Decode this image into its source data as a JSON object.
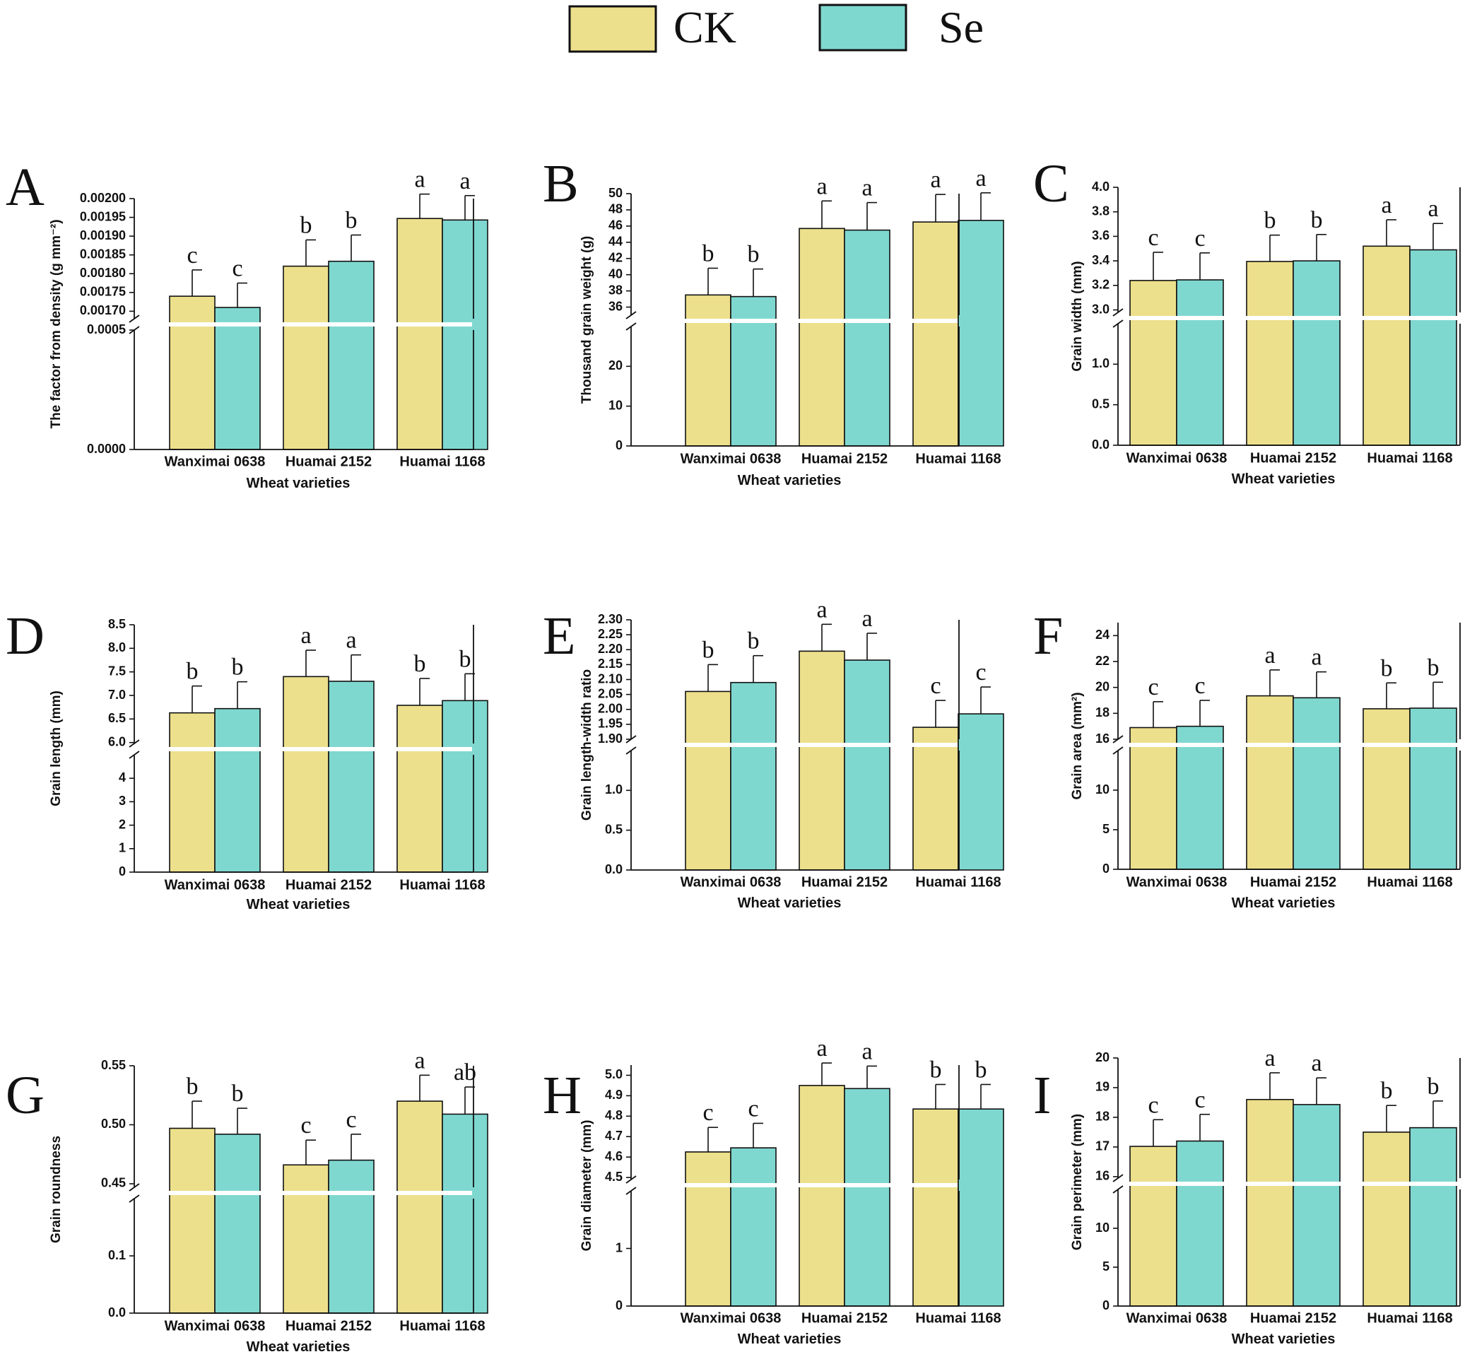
{
  "legend": {
    "items": [
      {
        "label": "CK",
        "color": "#ede08c"
      },
      {
        "label": "Se",
        "color": "#7fd8d0"
      }
    ]
  },
  "colors": {
    "ck": "#ede08c",
    "se": "#7fd8d0",
    "stroke": "#111111"
  },
  "chart_data": [
    {
      "type": "bar",
      "panel_letter": "A",
      "categories": [
        "Wanximai 0638",
        "Huamai 2152",
        "Huamai 1168"
      ],
      "series": [
        {
          "name": "CK",
          "values": [
            0.00174,
            0.00182,
            0.001947
          ],
          "errors": [
            7e-05,
            7e-05,
            6.5e-05
          ]
        },
        {
          "name": "Se",
          "values": [
            0.00171,
            0.001833,
            0.001943
          ],
          "errors": [
            6.5e-05,
            7e-05,
            6.5e-05
          ]
        }
      ],
      "letters": [
        [
          "c",
          "c"
        ],
        [
          "b",
          "b"
        ],
        [
          "a",
          "a"
        ]
      ],
      "ylabel": "The factor from density (g mm⁻²)",
      "xlabel": "Wheat varieties",
      "lower_ylim": [
        0,
        0.0005
      ],
      "upper_ylim": [
        0.00168,
        0.002
      ],
      "lower_ticks": [
        "0.0000",
        "0.0005"
      ],
      "lower_tick_values": [
        0,
        0.0005
      ],
      "upper_ticks": [
        "0.00170",
        "0.00175",
        "0.00180",
        "0.00185",
        "0.00190",
        "0.00195",
        "0.00200"
      ],
      "upper_tick_values": [
        0.0017,
        0.00175,
        0.0018,
        0.00185,
        0.0019,
        0.00195,
        0.002
      ]
    },
    {
      "type": "bar",
      "panel_letter": "B",
      "categories": [
        "Wanximai 0638",
        "Huamai 2152",
        "Huamai 1168"
      ],
      "series": [
        {
          "name": "CK",
          "values": [
            37.5,
            45.7,
            46.5
          ],
          "errors": [
            3.3,
            3.4,
            3.4
          ]
        },
        {
          "name": "Se",
          "values": [
            37.3,
            45.5,
            46.7
          ],
          "errors": [
            3.4,
            3.4,
            3.4
          ]
        }
      ],
      "letters": [
        [
          "b",
          "b"
        ],
        [
          "a",
          "a"
        ],
        [
          "a",
          "a"
        ]
      ],
      "ylabel": "Thousand grain weight (g)",
      "xlabel": "Wheat varieties",
      "lower_ylim": [
        0,
        30
      ],
      "upper_ylim": [
        35,
        50
      ],
      "lower_ticks": [
        "0",
        "10",
        "20"
      ],
      "lower_tick_values": [
        0,
        10,
        20
      ],
      "upper_ticks": [
        "36",
        "38",
        "40",
        "42",
        "44",
        "46",
        "48",
        "50"
      ],
      "upper_tick_values": [
        36,
        38,
        40,
        42,
        44,
        46,
        48,
        50
      ]
    },
    {
      "type": "bar",
      "panel_letter": "C",
      "categories": [
        "Wanximai 0638",
        "Huamai 2152",
        "Huamai 1168"
      ],
      "series": [
        {
          "name": "CK",
          "values": [
            3.24,
            3.395,
            3.52
          ],
          "errors": [
            0.23,
            0.215,
            0.215
          ]
        },
        {
          "name": "Se",
          "values": [
            3.245,
            3.4,
            3.49
          ],
          "errors": [
            0.22,
            0.215,
            0.215
          ]
        }
      ],
      "letters": [
        [
          "c",
          "c"
        ],
        [
          "b",
          "b"
        ],
        [
          "a",
          "a"
        ]
      ],
      "ylabel": "Grain width (mm)",
      "xlabel": "Wheat varieties",
      "lower_ylim": [
        0,
        1.5
      ],
      "upper_ylim": [
        2.98,
        4.0
      ],
      "lower_ticks": [
        "0.0",
        "0.5",
        "1.0"
      ],
      "lower_tick_values": [
        0,
        0.5,
        1.0
      ],
      "upper_ticks": [
        "3.0",
        "3.2",
        "3.4",
        "3.6",
        "3.8",
        "4.0"
      ],
      "upper_tick_values": [
        3.0,
        3.2,
        3.4,
        3.6,
        3.8,
        4.0
      ]
    },
    {
      "type": "bar",
      "panel_letter": "D",
      "categories": [
        "Wanximai 0638",
        "Huamai 2152",
        "Huamai 1168"
      ],
      "series": [
        {
          "name": "CK",
          "values": [
            6.63,
            7.4,
            6.79
          ],
          "errors": [
            0.57,
            0.56,
            0.57
          ]
        },
        {
          "name": "Se",
          "values": [
            6.72,
            7.3,
            6.89
          ],
          "errors": [
            0.57,
            0.56,
            0.57
          ]
        }
      ],
      "letters": [
        [
          "b",
          "b"
        ],
        [
          "a",
          "a"
        ],
        [
          "b",
          "b"
        ]
      ],
      "ylabel": "Grain length (mm)",
      "xlabel": "Wheat varieties",
      "lower_ylim": [
        0,
        5
      ],
      "upper_ylim": [
        5.98,
        8.5
      ],
      "lower_ticks": [
        "0",
        "1",
        "2",
        "3",
        "4"
      ],
      "lower_tick_values": [
        0,
        1,
        2,
        3,
        4
      ],
      "upper_ticks": [
        "6.0",
        "6.5",
        "7.0",
        "7.5",
        "8.0",
        "8.5"
      ],
      "upper_tick_values": [
        6.0,
        6.5,
        7.0,
        7.5,
        8.0,
        8.5
      ]
    },
    {
      "type": "bar",
      "panel_letter": "E",
      "categories": [
        "Wanximai 0638",
        "Huamai 2152",
        "Huamai 1168"
      ],
      "series": [
        {
          "name": "CK",
          "values": [
            2.06,
            2.195,
            1.94
          ],
          "errors": [
            0.09,
            0.09,
            0.09
          ]
        },
        {
          "name": "Se",
          "values": [
            2.09,
            2.165,
            1.985
          ],
          "errors": [
            0.09,
            0.09,
            0.09
          ]
        }
      ],
      "letters": [
        [
          "b",
          "b"
        ],
        [
          "a",
          "a"
        ],
        [
          "c",
          "c"
        ]
      ],
      "ylabel": "Grain length-width ratio",
      "xlabel": "Wheat varieties",
      "lower_ylim": [
        0,
        1.5
      ],
      "upper_ylim": [
        1.9,
        2.3
      ],
      "lower_ticks": [
        "0.0",
        "0.5",
        "1.0"
      ],
      "lower_tick_values": [
        0,
        0.5,
        1.0
      ],
      "upper_ticks": [
        "1.90",
        "1.95",
        "2.00",
        "2.05",
        "2.10",
        "2.15",
        "2.20",
        "2.25",
        "2.30"
      ],
      "upper_tick_values": [
        1.9,
        1.95,
        2.0,
        2.05,
        2.1,
        2.15,
        2.2,
        2.25,
        2.3
      ]
    },
    {
      "type": "bar",
      "panel_letter": "F",
      "categories": [
        "Wanximai 0638",
        "Huamai 2152",
        "Huamai 1168"
      ],
      "series": [
        {
          "name": "CK",
          "values": [
            16.9,
            19.35,
            18.35
          ],
          "errors": [
            2.0,
            2.0,
            2.0
          ]
        },
        {
          "name": "Se",
          "values": [
            17.0,
            19.2,
            18.4
          ],
          "errors": [
            2.0,
            2.0,
            2.0
          ]
        }
      ],
      "letters": [
        [
          "c",
          "c"
        ],
        [
          "a",
          "a"
        ],
        [
          "b",
          "b"
        ]
      ],
      "ylabel": "Grain area (mm²)",
      "xlabel": "Wheat varieties",
      "lower_ylim": [
        0,
        15
      ],
      "upper_ylim": [
        16,
        25
      ],
      "lower_ticks": [
        "0",
        "5",
        "10"
      ],
      "lower_tick_values": [
        0,
        5,
        10
      ],
      "upper_ticks": [
        "16",
        "18",
        "20",
        "22",
        "24"
      ],
      "upper_tick_values": [
        16,
        18,
        20,
        22,
        24
      ]
    },
    {
      "type": "bar",
      "panel_letter": "G",
      "categories": [
        "Wanximai 0638",
        "Huamai 2152",
        "Huamai 1168"
      ],
      "series": [
        {
          "name": "CK",
          "values": [
            0.497,
            0.466,
            0.52
          ],
          "errors": [
            0.023,
            0.021,
            0.022
          ]
        },
        {
          "name": "Se",
          "values": [
            0.492,
            0.47,
            0.509
          ],
          "errors": [
            0.022,
            0.022,
            0.023
          ]
        }
      ],
      "letters": [
        [
          "b",
          "b"
        ],
        [
          "c",
          "c"
        ],
        [
          "a",
          "ab"
        ]
      ],
      "ylabel": "Grain roundness",
      "xlabel": "Wheat varieties",
      "lower_ylim": [
        0,
        0.2
      ],
      "upper_ylim": [
        0.447,
        0.55
      ],
      "lower_ticks": [
        "0.0",
        "0.1"
      ],
      "lower_tick_values": [
        0,
        0.1
      ],
      "upper_ticks": [
        "0.45",
        "0.50",
        "0.55"
      ],
      "upper_tick_values": [
        0.45,
        0.5,
        0.55
      ]
    },
    {
      "type": "bar",
      "panel_letter": "H",
      "categories": [
        "Wanximai 0638",
        "Huamai 2152",
        "Huamai 1168"
      ],
      "series": [
        {
          "name": "CK",
          "values": [
            4.625,
            4.95,
            4.835
          ],
          "errors": [
            0.12,
            0.11,
            0.12
          ]
        },
        {
          "name": "Se",
          "values": [
            4.645,
            4.935,
            4.835
          ],
          "errors": [
            0.12,
            0.11,
            0.12
          ]
        }
      ],
      "letters": [
        [
          "c",
          "c"
        ],
        [
          "a",
          "a"
        ],
        [
          "b",
          "b"
        ]
      ],
      "ylabel": "Grain diameter (mm)",
      "xlabel": "Wheat varieties",
      "lower_ylim": [
        0,
        2
      ],
      "upper_ylim": [
        4.49,
        5.05
      ],
      "lower_ticks": [
        "0",
        "1"
      ],
      "lower_tick_values": [
        0,
        1
      ],
      "upper_ticks": [
        "4.5",
        "4.6",
        "4.7",
        "4.8",
        "4.9",
        "5.0"
      ],
      "upper_tick_values": [
        4.5,
        4.6,
        4.7,
        4.8,
        4.9,
        5.0
      ]
    },
    {
      "type": "bar",
      "panel_letter": "I",
      "categories": [
        "Wanximai 0638",
        "Huamai 2152",
        "Huamai 1168"
      ],
      "series": [
        {
          "name": "CK",
          "values": [
            17.02,
            18.6,
            17.5
          ],
          "errors": [
            0.9,
            0.9,
            0.9
          ]
        },
        {
          "name": "Se",
          "values": [
            17.2,
            18.43,
            17.65
          ],
          "errors": [
            0.9,
            0.9,
            0.9
          ]
        }
      ],
      "letters": [
        [
          "c",
          "c"
        ],
        [
          "a",
          "a"
        ],
        [
          "b",
          "b"
        ]
      ],
      "ylabel": "Grain perimeter (mm)",
      "xlabel": "Wheat varieties",
      "lower_ylim": [
        0,
        15
      ],
      "upper_ylim": [
        15.95,
        20
      ],
      "lower_ticks": [
        "0",
        "5",
        "10"
      ],
      "lower_tick_values": [
        0,
        5,
        10
      ],
      "upper_ticks": [
        "16",
        "17",
        "18",
        "19",
        "20"
      ],
      "upper_tick_values": [
        16,
        17,
        18,
        19,
        20
      ]
    }
  ]
}
